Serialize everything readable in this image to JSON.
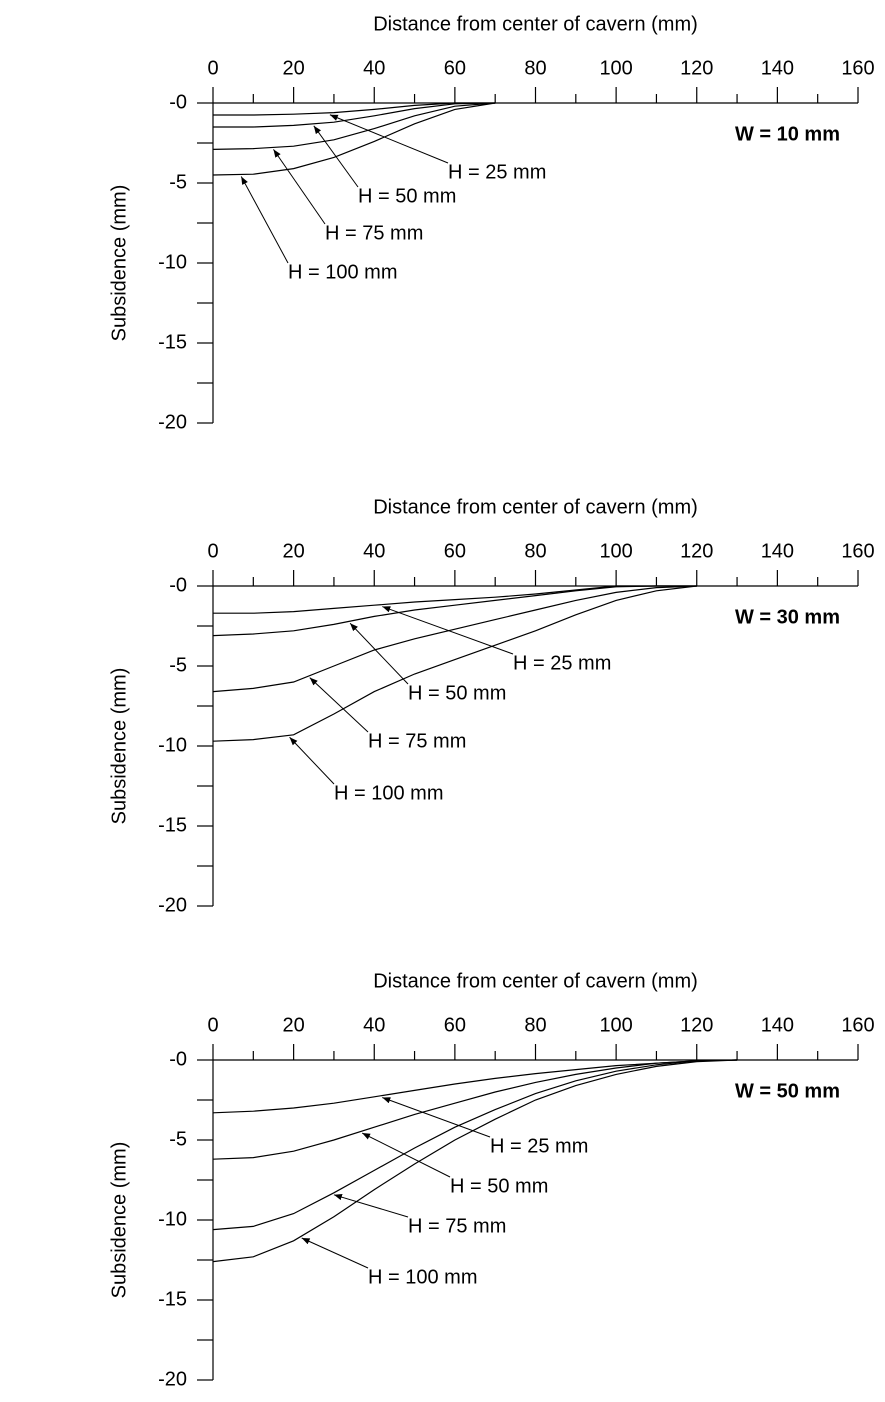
{
  "chart_data": [
    {
      "type": "line",
      "xlabel": "Distance from center of cavern (mm)",
      "ylabel": "Subsidence (mm)",
      "label": "W = 10 mm",
      "xlim": [
        0,
        160
      ],
      "xticks": [
        0,
        20,
        40,
        60,
        80,
        100,
        120,
        140,
        160
      ],
      "xminorticks": [
        10,
        30,
        50,
        70,
        90,
        110,
        130,
        150
      ],
      "ylim": [
        -20,
        0
      ],
      "yticks": [
        {
          "value": 0,
          "label": "-0"
        },
        -5,
        -10,
        -15,
        -20
      ],
      "yminorticks": [
        -2.5,
        -7.5,
        -12.5,
        -17.5
      ],
      "x": [
        0,
        10,
        20,
        30,
        40,
        50,
        60,
        70
      ],
      "series": [
        {
          "name": "H = 25 mm",
          "color": "#000000",
          "values": [
            -0.75,
            -0.75,
            -0.7,
            -0.6,
            -0.4,
            -0.15,
            0,
            0
          ]
        },
        {
          "name": "H = 50 mm",
          "color": "#000000",
          "values": [
            -1.5,
            -1.5,
            -1.4,
            -1.2,
            -0.8,
            -0.35,
            -0.05,
            0
          ]
        },
        {
          "name": "H = 75 mm",
          "color": "#000000",
          "values": [
            -2.9,
            -2.85,
            -2.7,
            -2.3,
            -1.6,
            -0.8,
            -0.2,
            0
          ]
        },
        {
          "name": "H = 100 mm",
          "color": "#000000",
          "values": [
            -4.5,
            -4.45,
            -4.1,
            -3.4,
            -2.4,
            -1.3,
            -0.4,
            0
          ]
        }
      ]
    },
    {
      "type": "line",
      "xlabel": "Distance from center of cavern (mm)",
      "ylabel": "Subsidence (mm)",
      "label": "W = 30 mm",
      "xlim": [
        0,
        160
      ],
      "xticks": [
        0,
        20,
        40,
        60,
        80,
        100,
        120,
        140,
        160
      ],
      "xminorticks": [
        10,
        30,
        50,
        70,
        90,
        110,
        130,
        150
      ],
      "ylim": [
        -20,
        0
      ],
      "yticks": [
        {
          "value": 0,
          "label": "-0"
        },
        -5,
        -10,
        -15,
        -20
      ],
      "yminorticks": [
        -2.5,
        -7.5,
        -12.5,
        -17.5
      ],
      "x": [
        0,
        10,
        20,
        30,
        40,
        50,
        60,
        70,
        80,
        90,
        100,
        110,
        120
      ],
      "series": [
        {
          "name": "H = 25 mm",
          "color": "#000000",
          "values": [
            -1.7,
            -1.7,
            -1.6,
            -1.4,
            -1.2,
            -1.0,
            -0.85,
            -0.7,
            -0.5,
            -0.25,
            0,
            0,
            0
          ]
        },
        {
          "name": "H = 50 mm",
          "color": "#000000",
          "values": [
            -3.1,
            -3.0,
            -2.8,
            -2.4,
            -1.9,
            -1.5,
            -1.2,
            -0.9,
            -0.6,
            -0.3,
            -0.05,
            0,
            0
          ]
        },
        {
          "name": "H = 75 mm",
          "color": "#000000",
          "values": [
            -6.6,
            -6.4,
            -6.0,
            -5.0,
            -4.0,
            -3.3,
            -2.7,
            -2.1,
            -1.5,
            -0.9,
            -0.4,
            -0.1,
            0
          ]
        },
        {
          "name": "H = 100 mm",
          "color": "#000000",
          "values": [
            -9.7,
            -9.6,
            -9.3,
            -8.0,
            -6.6,
            -5.5,
            -4.6,
            -3.7,
            -2.8,
            -1.8,
            -0.9,
            -0.3,
            0
          ]
        }
      ]
    },
    {
      "type": "line",
      "xlabel": "Distance from center of cavern (mm)",
      "ylabel": "Subsidence (mm)",
      "label": "W = 50 mm",
      "xlim": [
        0,
        160
      ],
      "xticks": [
        0,
        20,
        40,
        60,
        80,
        100,
        120,
        140,
        160
      ],
      "xminorticks": [
        10,
        30,
        50,
        70,
        90,
        110,
        130,
        150
      ],
      "ylim": [
        -20,
        0
      ],
      "yticks": [
        {
          "value": 0,
          "label": "-0"
        },
        -5,
        -10,
        -15,
        -20
      ],
      "yminorticks": [
        -2.5,
        -7.5,
        -12.5,
        -17.5
      ],
      "x": [
        0,
        10,
        20,
        30,
        40,
        50,
        60,
        70,
        80,
        90,
        100,
        110,
        120,
        130
      ],
      "series": [
        {
          "name": "H = 25 mm",
          "color": "#000000",
          "values": [
            -3.3,
            -3.2,
            -3.0,
            -2.7,
            -2.3,
            -1.9,
            -1.5,
            -1.15,
            -0.85,
            -0.6,
            -0.35,
            -0.2,
            -0.05,
            0
          ]
        },
        {
          "name": "H = 50 mm",
          "color": "#000000",
          "values": [
            -6.2,
            -6.1,
            -5.7,
            -5.0,
            -4.2,
            -3.4,
            -2.7,
            -2.0,
            -1.4,
            -0.9,
            -0.5,
            -0.2,
            -0.05,
            0
          ]
        },
        {
          "name": "H = 75 mm",
          "color": "#000000",
          "values": [
            -10.6,
            -10.4,
            -9.6,
            -8.3,
            -6.9,
            -5.5,
            -4.2,
            -3.1,
            -2.1,
            -1.3,
            -0.7,
            -0.3,
            -0.05,
            0
          ]
        },
        {
          "name": "H = 100 mm",
          "color": "#000000",
          "values": [
            -12.6,
            -12.3,
            -11.3,
            -9.8,
            -8.1,
            -6.5,
            -5.0,
            -3.7,
            -2.5,
            -1.6,
            -0.9,
            -0.4,
            -0.1,
            0
          ]
        }
      ]
    }
  ]
}
